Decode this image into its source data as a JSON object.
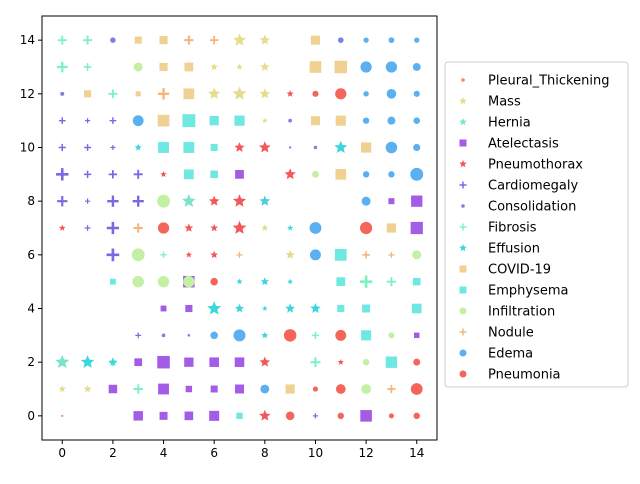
{
  "chart_data": {
    "type": "scatter",
    "title": "",
    "xlabel": "",
    "ylabel": "",
    "xlim": [
      -0.8,
      14.8
    ],
    "ylim": [
      -0.9,
      14.9
    ],
    "x_ticks": [
      0,
      2,
      4,
      6,
      8,
      10,
      12,
      14
    ],
    "y_ticks": [
      0,
      2,
      4,
      6,
      8,
      10,
      12,
      14
    ],
    "grid": false,
    "legend_position": "center-right",
    "series": [
      {
        "name": "Pleural_Thickening",
        "marker": "point",
        "color": "#f48f5c",
        "points": [
          [
            0,
            0
          ],
          [
            10,
            6
          ]
        ]
      },
      {
        "name": "Mass",
        "marker": "star",
        "color": "#e3dd8c",
        "points": [
          [
            7,
            14
          ],
          [
            8,
            14
          ],
          [
            6,
            13
          ],
          [
            7,
            13
          ],
          [
            8,
            13
          ],
          [
            6,
            12
          ],
          [
            7,
            12
          ],
          [
            8,
            12
          ],
          [
            8,
            11
          ],
          [
            0,
            1
          ],
          [
            1,
            1
          ],
          [
            8,
            7
          ],
          [
            9,
            6
          ]
        ]
      },
      {
        "name": "Hernia",
        "marker": "star",
        "color": "#7de3c9",
        "points": [
          [
            4,
            4
          ],
          [
            0,
            2
          ],
          [
            5,
            8
          ]
        ]
      },
      {
        "name": "Atelectasis",
        "marker": "square",
        "color": "#a35ce6",
        "points": [
          [
            3,
            0
          ],
          [
            4,
            0
          ],
          [
            5,
            0
          ],
          [
            6,
            0
          ],
          [
            12,
            0
          ],
          [
            2,
            1
          ],
          [
            4,
            1
          ],
          [
            5,
            1
          ],
          [
            6,
            1
          ],
          [
            7,
            1
          ],
          [
            3,
            2
          ],
          [
            4,
            2
          ],
          [
            5,
            2
          ],
          [
            6,
            2
          ],
          [
            7,
            2
          ],
          [
            14,
            3
          ],
          [
            4,
            4
          ],
          [
            5,
            4
          ],
          [
            5,
            5
          ],
          [
            14,
            7
          ],
          [
            13,
            8
          ],
          [
            14,
            8
          ],
          [
            7,
            9
          ]
        ]
      },
      {
        "name": "Pneumothorax",
        "marker": "star",
        "color": "#f4565a",
        "points": [
          [
            8,
            0
          ],
          [
            8,
            2
          ],
          [
            11,
            2
          ],
          [
            0,
            7
          ],
          [
            5,
            7
          ],
          [
            6,
            7
          ],
          [
            7,
            7
          ],
          [
            5,
            6
          ],
          [
            6,
            6
          ],
          [
            6,
            8
          ],
          [
            7,
            8
          ],
          [
            8,
            8
          ],
          [
            9,
            9
          ],
          [
            7,
            10
          ],
          [
            8,
            10
          ],
          [
            9,
            12
          ],
          [
            4,
            9
          ]
        ]
      },
      {
        "name": "Cardiomegaly",
        "marker": "plus",
        "color": "#7b68e3",
        "points": [
          [
            10,
            0
          ],
          [
            0,
            8
          ],
          [
            1,
            8
          ],
          [
            2,
            8
          ],
          [
            3,
            8
          ],
          [
            0,
            9
          ],
          [
            1,
            9
          ],
          [
            2,
            9
          ],
          [
            3,
            9
          ],
          [
            0,
            10
          ],
          [
            1,
            10
          ],
          [
            2,
            10
          ],
          [
            0,
            11
          ],
          [
            1,
            11
          ],
          [
            2,
            11
          ],
          [
            1,
            7
          ],
          [
            2,
            7
          ],
          [
            2,
            6
          ],
          [
            3,
            3
          ]
        ]
      },
      {
        "name": "Consolidation",
        "marker": "point",
        "color": "#7b80e3",
        "points": [
          [
            2,
            14
          ],
          [
            11,
            14
          ],
          [
            0,
            12
          ],
          [
            9,
            11
          ],
          [
            10,
            10
          ],
          [
            9,
            10
          ],
          [
            4,
            3
          ],
          [
            5,
            3
          ]
        ]
      },
      {
        "name": "Fibrosis",
        "marker": "plus",
        "color": "#7df2c0",
        "points": [
          [
            0,
            14
          ],
          [
            1,
            14
          ],
          [
            0,
            13
          ],
          [
            1,
            13
          ],
          [
            2,
            12
          ],
          [
            2,
            2
          ],
          [
            3,
            1
          ],
          [
            4,
            6
          ],
          [
            10,
            3
          ],
          [
            10,
            2
          ],
          [
            12,
            5
          ],
          [
            13,
            5
          ]
        ]
      },
      {
        "name": "Effusion",
        "marker": "star",
        "color": "#3cd6e0",
        "points": [
          [
            3,
            10
          ],
          [
            11,
            10
          ],
          [
            1,
            2
          ],
          [
            2,
            2
          ],
          [
            6,
            4
          ],
          [
            7,
            4
          ],
          [
            8,
            4
          ],
          [
            9,
            4
          ],
          [
            10,
            4
          ],
          [
            8,
            3
          ],
          [
            8,
            5
          ],
          [
            7,
            5
          ],
          [
            9,
            5
          ],
          [
            8,
            8
          ],
          [
            9,
            7
          ],
          [
            6,
            3
          ]
        ]
      },
      {
        "name": "COVID-19",
        "marker": "square",
        "color": "#f0d192",
        "points": [
          [
            3,
            14
          ],
          [
            4,
            14
          ],
          [
            10,
            14
          ],
          [
            4,
            13
          ],
          [
            5,
            13
          ],
          [
            10,
            13
          ],
          [
            11,
            13
          ],
          [
            1,
            12
          ],
          [
            3,
            12
          ],
          [
            5,
            12
          ],
          [
            4,
            11
          ],
          [
            10,
            11
          ],
          [
            11,
            11
          ],
          [
            12,
            10
          ],
          [
            11,
            9
          ],
          [
            13,
            7
          ],
          [
            9,
            1
          ]
        ]
      },
      {
        "name": "Emphysema",
        "marker": "square",
        "color": "#6ee8e0",
        "points": [
          [
            5,
            11
          ],
          [
            6,
            11
          ],
          [
            7,
            11
          ],
          [
            4,
            10
          ],
          [
            5,
            10
          ],
          [
            6,
            10
          ],
          [
            5,
            9
          ],
          [
            6,
            9
          ],
          [
            2,
            5
          ],
          [
            11,
            6
          ],
          [
            11,
            5
          ],
          [
            14,
            5
          ],
          [
            11,
            4
          ],
          [
            12,
            4
          ],
          [
            14,
            4
          ],
          [
            12,
            3
          ],
          [
            13,
            2
          ],
          [
            7,
            0
          ]
        ]
      },
      {
        "name": "Infiltration",
        "marker": "circle",
        "color": "#c4f0a4",
        "points": [
          [
            3,
            13
          ],
          [
            4,
            8
          ],
          [
            3,
            6
          ],
          [
            3,
            5
          ],
          [
            4,
            5
          ],
          [
            5,
            5
          ],
          [
            10,
            9
          ],
          [
            14,
            6
          ],
          [
            12,
            2
          ],
          [
            12,
            1
          ],
          [
            13,
            3
          ]
        ]
      },
      {
        "name": "Nodule",
        "marker": "plus",
        "color": "#f4b47a",
        "points": [
          [
            5,
            14
          ],
          [
            6,
            14
          ],
          [
            4,
            12
          ],
          [
            3,
            7
          ],
          [
            7,
            6
          ],
          [
            12,
            6
          ],
          [
            13,
            6
          ],
          [
            13,
            1
          ]
        ]
      },
      {
        "name": "Edema",
        "marker": "circle",
        "color": "#5ab0f0",
        "points": [
          [
            12,
            14
          ],
          [
            13,
            14
          ],
          [
            14,
            14
          ],
          [
            12,
            13
          ],
          [
            13,
            13
          ],
          [
            14,
            13
          ],
          [
            12,
            12
          ],
          [
            13,
            12
          ],
          [
            14,
            12
          ],
          [
            12,
            11
          ],
          [
            13,
            11
          ],
          [
            14,
            11
          ],
          [
            3,
            11
          ],
          [
            13,
            10
          ],
          [
            14,
            10
          ],
          [
            12,
            9
          ],
          [
            13,
            9
          ],
          [
            14,
            9
          ],
          [
            12,
            8
          ],
          [
            10,
            7
          ],
          [
            10,
            6
          ],
          [
            8,
            1
          ],
          [
            6,
            3
          ],
          [
            7,
            3
          ]
        ]
      },
      {
        "name": "Pneumonia",
        "marker": "circle",
        "color": "#f4665a",
        "points": [
          [
            9,
            0
          ],
          [
            11,
            0
          ],
          [
            13,
            0
          ],
          [
            14,
            0
          ],
          [
            10,
            1
          ],
          [
            11,
            1
          ],
          [
            14,
            1
          ],
          [
            14,
            2
          ],
          [
            9,
            3
          ],
          [
            11,
            3
          ],
          [
            6,
            5
          ],
          [
            4,
            7
          ],
          [
            12,
            7
          ],
          [
            10,
            12
          ],
          [
            11,
            12
          ]
        ]
      }
    ]
  }
}
